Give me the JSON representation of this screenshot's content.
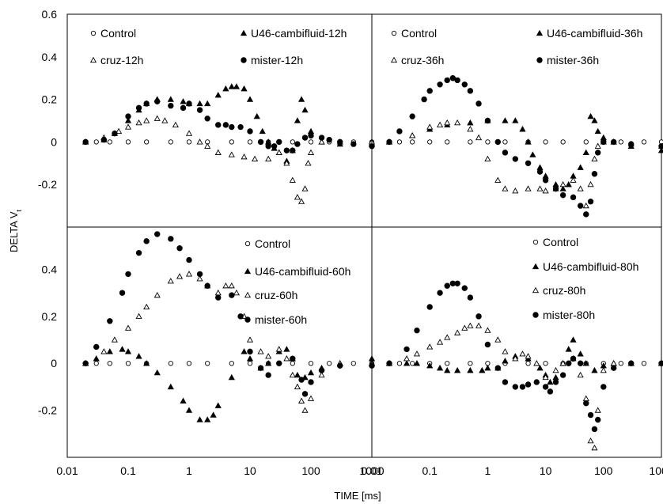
{
  "figure": {
    "xlabel": "TIME [ms]",
    "ylabel": "DELTA V",
    "ylabel_subscript": "t",
    "x_tick_labels": [
      "0.01",
      "0.1",
      "1",
      "10",
      "100",
      "1000"
    ],
    "y_tick_labels_top": [
      "0.6",
      "0.4",
      "0.2",
      "0",
      "-0.2"
    ],
    "y_tick_labels_bottom": [
      "0.4",
      "0.2",
      "0",
      "-0.2"
    ]
  },
  "chart_data": [
    {
      "type": "scatter",
      "panel": "top-left",
      "xscale": "log",
      "xlim": [
        0.01,
        1000
      ],
      "ylim": [
        -0.4,
        0.6
      ],
      "xlabel": "TIME [ms]",
      "ylabel": "DELTA Vt",
      "legend_placement": "top",
      "series": [
        {
          "name": "Control",
          "marker": "open-circle",
          "x": [
            0.02,
            0.03,
            0.05,
            0.1,
            0.2,
            0.5,
            1,
            2,
            5,
            10,
            20,
            50,
            100,
            200,
            500,
            1000
          ],
          "y": [
            0,
            0,
            0,
            0,
            0,
            0,
            0,
            0,
            0,
            0,
            0,
            0,
            0,
            0,
            0,
            0
          ]
        },
        {
          "name": "U46-cambifluid-12h",
          "marker": "filled-triangle",
          "x": [
            0.02,
            0.04,
            0.06,
            0.1,
            0.15,
            0.2,
            0.3,
            0.5,
            0.8,
            1,
            1.5,
            2,
            3,
            4,
            5,
            6,
            8,
            10,
            13,
            16,
            20,
            25,
            30,
            40,
            50,
            60,
            70,
            80,
            100,
            150,
            300,
            1000
          ],
          "y": [
            0,
            0.01,
            0.04,
            0.1,
            0.15,
            0.18,
            0.2,
            0.2,
            0.19,
            0.18,
            0.18,
            0.18,
            0.22,
            0.25,
            0.26,
            0.26,
            0.25,
            0.2,
            0.12,
            0.05,
            0,
            -0.03,
            -0.05,
            -0.09,
            -0.04,
            0.1,
            0.2,
            0.15,
            0.05,
            0,
            -0.01,
            -0.01
          ]
        },
        {
          "name": "cruz-12h",
          "marker": "open-triangle",
          "x": [
            0.02,
            0.04,
            0.07,
            0.1,
            0.15,
            0.2,
            0.3,
            0.4,
            0.6,
            1,
            1.5,
            2,
            3,
            5,
            8,
            12,
            20,
            30,
            40,
            50,
            60,
            70,
            80,
            90,
            100,
            150,
            300,
            1000
          ],
          "y": [
            0,
            0.02,
            0.05,
            0.07,
            0.09,
            0.1,
            0.11,
            0.1,
            0.08,
            0.04,
            0,
            -0.02,
            -0.05,
            -0.06,
            -0.07,
            -0.08,
            -0.08,
            -0.05,
            -0.1,
            -0.18,
            -0.26,
            -0.28,
            -0.22,
            -0.1,
            -0.05,
            0,
            0,
            0
          ]
        },
        {
          "name": "mister-12h",
          "marker": "filled-circle",
          "x": [
            0.02,
            0.04,
            0.06,
            0.1,
            0.15,
            0.2,
            0.3,
            0.5,
            0.8,
            1,
            1.5,
            2,
            3,
            4,
            5,
            7,
            10,
            15,
            20,
            25,
            30,
            40,
            50,
            60,
            80,
            100,
            150,
            200,
            300,
            500,
            1000
          ],
          "y": [
            0,
            0.01,
            0.04,
            0.12,
            0.16,
            0.18,
            0.19,
            0.17,
            0.16,
            0.18,
            0.15,
            0.11,
            0.08,
            0.08,
            0.07,
            0.07,
            0.05,
            0,
            -0.02,
            -0.02,
            0,
            -0.04,
            -0.04,
            -0.01,
            0.02,
            0.03,
            0.02,
            0.01,
            0,
            -0.01,
            -0.02
          ]
        }
      ]
    },
    {
      "type": "scatter",
      "panel": "top-right",
      "xscale": "log",
      "xlim": [
        0.01,
        1000
      ],
      "ylim": [
        -0.4,
        0.6
      ],
      "legend_placement": "top",
      "series": [
        {
          "name": "Control",
          "marker": "open-circle",
          "x": [
            0.02,
            0.03,
            0.05,
            0.1,
            0.2,
            0.5,
            1,
            2,
            5,
            10,
            20,
            50,
            100,
            200,
            500,
            1000
          ],
          "y": [
            0,
            0,
            0,
            0,
            0,
            0,
            0,
            0,
            0,
            0,
            0,
            0,
            0,
            0,
            0,
            0
          ]
        },
        {
          "name": "U46-cambifluid-36h",
          "marker": "filled-triangle",
          "x": [
            0.02,
            0.05,
            0.1,
            0.2,
            0.5,
            1,
            2,
            3,
            4,
            5,
            6,
            8,
            10,
            15,
            20,
            25,
            30,
            40,
            50,
            60,
            70,
            80,
            100,
            150,
            300,
            1000
          ],
          "y": [
            0,
            0.03,
            0.06,
            0.08,
            0.09,
            0.1,
            0.1,
            0.1,
            0.06,
            0,
            -0.06,
            -0.12,
            -0.16,
            -0.2,
            -0.22,
            -0.2,
            -0.16,
            -0.12,
            -0.05,
            0.12,
            0.1,
            0.05,
            0.02,
            0,
            -0.02,
            -0.04
          ]
        },
        {
          "name": "cruz-36h",
          "marker": "open-triangle",
          "x": [
            0.02,
            0.05,
            0.1,
            0.15,
            0.2,
            0.3,
            0.5,
            0.7,
            1,
            1.5,
            2,
            3,
            5,
            8,
            10,
            15,
            20,
            30,
            40,
            50,
            60,
            70,
            80,
            100,
            150,
            300,
            1000
          ],
          "y": [
            0,
            0.03,
            0.07,
            0.08,
            0.09,
            0.09,
            0.06,
            0.02,
            -0.08,
            -0.18,
            -0.22,
            -0.23,
            -0.22,
            -0.22,
            -0.23,
            -0.22,
            -0.2,
            -0.18,
            -0.22,
            -0.3,
            -0.2,
            -0.08,
            -0.02,
            0,
            0,
            -0.01,
            -0.02
          ]
        },
        {
          "name": "mister-36h",
          "marker": "filled-circle",
          "x": [
            0.02,
            0.03,
            0.05,
            0.08,
            0.1,
            0.15,
            0.2,
            0.25,
            0.3,
            0.4,
            0.5,
            0.7,
            1,
            1.5,
            2,
            3,
            5,
            8,
            10,
            15,
            20,
            30,
            40,
            50,
            60,
            70,
            80,
            100,
            150,
            300,
            1000
          ],
          "y": [
            0,
            0.05,
            0.12,
            0.2,
            0.24,
            0.27,
            0.29,
            0.3,
            0.29,
            0.27,
            0.24,
            0.18,
            0.1,
            0,
            -0.05,
            -0.08,
            -0.1,
            -0.14,
            -0.18,
            -0.22,
            -0.25,
            -0.26,
            -0.3,
            -0.34,
            -0.28,
            -0.15,
            -0.05,
            0,
            0,
            -0.01,
            -0.02
          ]
        }
      ]
    },
    {
      "type": "scatter",
      "panel": "bottom-left",
      "xscale": "log",
      "xlim": [
        0.01,
        1000
      ],
      "ylim": [
        -0.4,
        0.58
      ],
      "legend_placement": "top-right",
      "series": [
        {
          "name": "Control",
          "marker": "open-circle",
          "x": [
            0.02,
            0.03,
            0.05,
            0.1,
            0.2,
            0.5,
            1,
            2,
            5,
            10,
            20,
            50,
            100,
            200,
            500,
            1000
          ],
          "y": [
            0,
            0,
            0,
            0,
            0,
            0,
            0,
            0,
            0,
            0,
            0,
            0,
            0,
            0,
            0,
            0
          ]
        },
        {
          "name": "U46-cambifluid-60h",
          "marker": "filled-triangle",
          "x": [
            0.02,
            0.03,
            0.05,
            0.08,
            0.1,
            0.15,
            0.2,
            0.3,
            0.5,
            0.8,
            1,
            1.5,
            2,
            2.5,
            3,
            5,
            8,
            10,
            15,
            20,
            30,
            40,
            50,
            60,
            80,
            100,
            150,
            300,
            1000
          ],
          "y": [
            0,
            0.02,
            0.05,
            0.06,
            0.05,
            0.03,
            0,
            -0.04,
            -0.1,
            -0.16,
            -0.2,
            -0.24,
            -0.24,
            -0.22,
            -0.18,
            -0.06,
            0.05,
            0.02,
            -0.02,
            0,
            0.05,
            0.06,
            0.02,
            -0.05,
            -0.06,
            -0.04,
            -0.02,
            0,
            0.02
          ]
        },
        {
          "name": "cruz-60h",
          "marker": "open-triangle",
          "x": [
            0.02,
            0.04,
            0.06,
            0.1,
            0.15,
            0.2,
            0.3,
            0.5,
            0.7,
            1,
            1.5,
            2,
            3,
            4,
            5,
            6,
            8,
            10,
            15,
            20,
            30,
            40,
            50,
            60,
            70,
            80,
            100,
            150,
            300,
            1000
          ],
          "y": [
            0,
            0.05,
            0.1,
            0.15,
            0.2,
            0.24,
            0.29,
            0.35,
            0.37,
            0.38,
            0.36,
            0.33,
            0.3,
            0.33,
            0.33,
            0.3,
            0.2,
            0.1,
            0.05,
            0.03,
            0.06,
            0.02,
            -0.05,
            -0.1,
            -0.16,
            -0.2,
            -0.15,
            -0.05,
            0,
            0
          ]
        },
        {
          "name": "mister-60h",
          "marker": "filled-circle",
          "x": [
            0.02,
            0.03,
            0.05,
            0.08,
            0.1,
            0.15,
            0.2,
            0.3,
            0.5,
            0.7,
            1,
            1.5,
            2,
            3,
            5,
            7,
            10,
            15,
            20,
            30,
            50,
            70,
            80,
            100,
            150,
            300,
            1000
          ],
          "y": [
            0,
            0.07,
            0.18,
            0.3,
            0.38,
            0.47,
            0.52,
            0.55,
            0.53,
            0.49,
            0.44,
            0.38,
            0.33,
            0.28,
            0.29,
            0.2,
            0.05,
            -0.02,
            -0.05,
            0,
            0.02,
            -0.07,
            -0.13,
            -0.08,
            -0.03,
            -0.01,
            -0.01
          ]
        }
      ]
    },
    {
      "type": "scatter",
      "panel": "bottom-right",
      "xscale": "log",
      "xlim": [
        0.01,
        1000
      ],
      "ylim": [
        -0.4,
        0.58
      ],
      "legend_placement": "top-right",
      "series": [
        {
          "name": "Control",
          "marker": "open-circle",
          "x": [
            0.02,
            0.03,
            0.05,
            0.1,
            0.2,
            0.5,
            1,
            2,
            5,
            10,
            20,
            50,
            100,
            200,
            500,
            1000
          ],
          "y": [
            0,
            0,
            0,
            0,
            0,
            0,
            0,
            0,
            0,
            0,
            0,
            0,
            0,
            0,
            0,
            0
          ]
        },
        {
          "name": "U46-cambifluid-80h",
          "marker": "filled-triangle",
          "x": [
            0.02,
            0.04,
            0.06,
            0.1,
            0.15,
            0.2,
            0.3,
            0.5,
            0.8,
            1,
            1.5,
            2,
            3,
            5,
            8,
            10,
            12,
            15,
            20,
            25,
            30,
            40,
            50,
            70,
            100,
            150,
            300,
            1000
          ],
          "y": [
            0,
            0,
            0,
            -0.01,
            -0.02,
            -0.03,
            -0.03,
            -0.03,
            -0.03,
            -0.02,
            -0.02,
            0.01,
            0.03,
            0.02,
            -0.02,
            -0.05,
            -0.08,
            -0.06,
            0,
            0.06,
            0.1,
            0.04,
            0,
            -0.03,
            -0.01,
            0,
            0,
            0
          ]
        },
        {
          "name": "cruz-80h",
          "marker": "open-triangle",
          "x": [
            0.02,
            0.04,
            0.06,
            0.1,
            0.15,
            0.2,
            0.3,
            0.4,
            0.5,
            0.7,
            1,
            1.5,
            2,
            3,
            4,
            5,
            7,
            10,
            15,
            20,
            30,
            40,
            50,
            60,
            70,
            80,
            100,
            150,
            300,
            1000
          ],
          "y": [
            0,
            0.02,
            0.04,
            0.07,
            0.09,
            0.11,
            0.13,
            0.15,
            0.16,
            0.16,
            0.14,
            0.1,
            0.05,
            0.02,
            0.04,
            0.03,
            0,
            -0.06,
            -0.03,
            0,
            0.02,
            -0.05,
            -0.15,
            -0.33,
            -0.36,
            -0.2,
            -0.03,
            0,
            0,
            0
          ]
        },
        {
          "name": "mister-80h",
          "marker": "filled-circle",
          "x": [
            0.02,
            0.04,
            0.06,
            0.1,
            0.15,
            0.2,
            0.25,
            0.3,
            0.4,
            0.5,
            0.7,
            1,
            1.5,
            2,
            3,
            4,
            5,
            7,
            10,
            12,
            15,
            20,
            25,
            30,
            40,
            50,
            60,
            70,
            80,
            100,
            150,
            300,
            1000
          ],
          "y": [
            0,
            0.06,
            0.14,
            0.24,
            0.3,
            0.33,
            0.34,
            0.34,
            0.32,
            0.28,
            0.2,
            0.08,
            -0.02,
            -0.08,
            -0.1,
            -0.1,
            -0.09,
            -0.08,
            -0.1,
            -0.12,
            -0.08,
            -0.05,
            0,
            0.02,
            0,
            -0.17,
            -0.22,
            -0.28,
            -0.24,
            -0.1,
            -0.02,
            0,
            0
          ]
        }
      ]
    }
  ]
}
